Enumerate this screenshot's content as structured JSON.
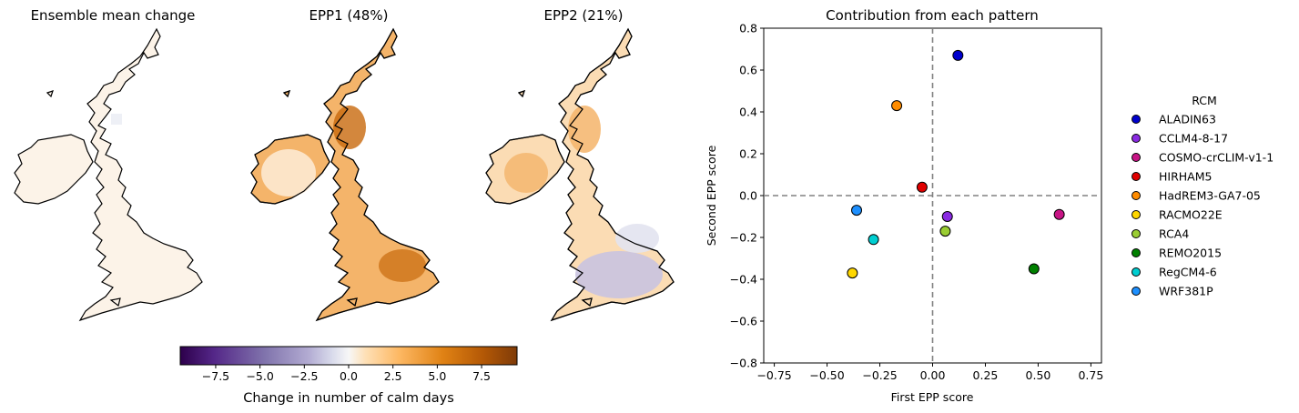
{
  "chart_data": [
    {
      "type": "heatmap",
      "title": "Ensemble mean change",
      "pattern": "near-zero-uniform",
      "colorbar": {
        "label": "Change in number of calm days",
        "colormap": "PuOr_r",
        "vmin": -9.5,
        "vmax": 9.5,
        "ticks": [
          -7.5,
          -5.0,
          -2.5,
          0.0,
          2.5,
          5.0,
          7.5
        ],
        "tick_labels": [
          "−7.5",
          "−5.0",
          "−2.5",
          "0.0",
          "2.5",
          "5.0",
          "7.5"
        ]
      }
    },
    {
      "type": "heatmap",
      "title": "EPP1 (48%)",
      "pattern": "positive-everywhere, strongest in western Scotland and south-east England"
    },
    {
      "type": "heatmap",
      "title": "EPP2 (21%)",
      "pattern": "positive in north and Ireland, negative in southern England"
    },
    {
      "type": "scatter",
      "title": "Contribution from each pattern",
      "xlabel": "First EPP score",
      "ylabel": "Second EPP score",
      "xlim": [
        -0.8,
        0.8
      ],
      "ylim": [
        -0.8,
        0.8
      ],
      "xticks": [
        -0.75,
        -0.5,
        -0.25,
        0.0,
        0.25,
        0.5,
        0.75
      ],
      "xtick_labels": [
        "−0.75",
        "−0.50",
        "−0.25",
        "0.00",
        "0.25",
        "0.50",
        "0.75"
      ],
      "yticks": [
        0.8,
        0.6,
        0.4,
        0.2,
        0.0,
        -0.2,
        -0.4,
        -0.6,
        -0.8
      ],
      "ytick_labels": [
        "0.8",
        "0.6",
        "0.4",
        "0.2",
        "0.0",
        "−0.2",
        "−0.4",
        "−0.6",
        "−0.8"
      ],
      "reference_lines": {
        "x": 0,
        "y": 0,
        "style": "dashed",
        "color": "#808080"
      },
      "legend": {
        "title": "RCM",
        "placement": "right-outside"
      },
      "series": [
        {
          "name": "ALADIN63",
          "color": "#0000cd",
          "x": 0.12,
          "y": 0.67
        },
        {
          "name": "CCLM4-8-17",
          "color": "#8a2be2",
          "x": 0.07,
          "y": -0.1
        },
        {
          "name": "COSMO-crCLIM-v1-1",
          "color": "#c71585",
          "x": 0.6,
          "y": -0.09
        },
        {
          "name": "HIRHAM5",
          "color": "#e00000",
          "x": -0.05,
          "y": 0.04
        },
        {
          "name": "HadREM3-GA7-05",
          "color": "#ff8c00",
          "x": -0.17,
          "y": 0.43
        },
        {
          "name": "RACMO22E",
          "color": "#ffd700",
          "x": -0.38,
          "y": -0.37
        },
        {
          "name": "RCA4",
          "color": "#9acd32",
          "x": 0.06,
          "y": -0.17
        },
        {
          "name": "REMO2015",
          "color": "#008000",
          "x": 0.48,
          "y": -0.35
        },
        {
          "name": "RegCM4-6",
          "color": "#00ced1",
          "x": -0.28,
          "y": -0.21
        },
        {
          "name": "WRF381P",
          "color": "#1e90ff",
          "x": -0.36,
          "y": -0.07
        }
      ]
    }
  ]
}
